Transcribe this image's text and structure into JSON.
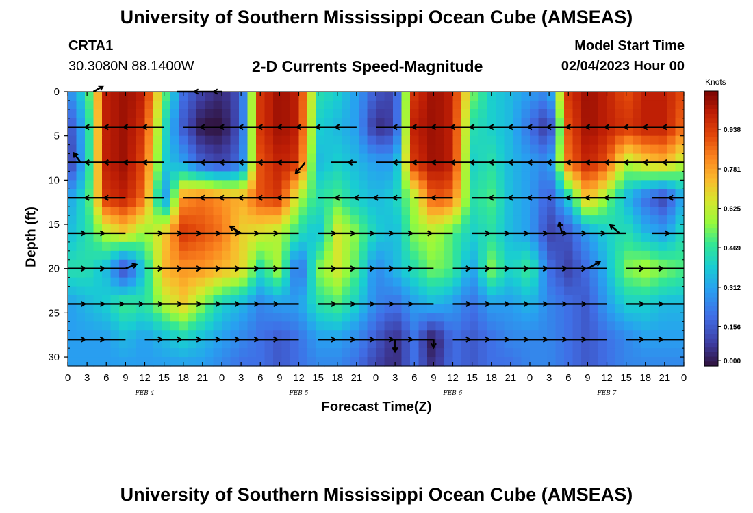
{
  "header": {
    "title": "University of Southern Mississippi Ocean Cube (AMSEAS)",
    "station_id": "CRTA1",
    "coordinates": "30.3080N  88.1400W",
    "chart_title": "2-D Currents Speed-Magnitude",
    "model_start_label": "Model Start Time",
    "model_start_value": "02/04/2023 Hour 00"
  },
  "footer": {
    "title": "University of Southern Mississippi Ocean Cube (AMSEAS)"
  },
  "chart_data": {
    "type": "heatmap",
    "xlabel": "Forecast Time(Z)",
    "ylabel": "Depth (ft)",
    "x_ticks": [
      "0",
      "3",
      "6",
      "9",
      "12",
      "15",
      "18",
      "21",
      "0",
      "3",
      "6",
      "9",
      "12",
      "15",
      "18",
      "21",
      "0",
      "3",
      "6",
      "9",
      "12",
      "15",
      "18",
      "21",
      "0",
      "3",
      "6",
      "9",
      "12",
      "15",
      "18",
      "21",
      "0"
    ],
    "x_range_hours": [
      0,
      96
    ],
    "day_labels": [
      {
        "label": "FEB 4",
        "hour": 12
      },
      {
        "label": "FEB 5",
        "hour": 36
      },
      {
        "label": "FEB 6",
        "hour": 60
      },
      {
        "label": "FEB 7",
        "hour": 84
      }
    ],
    "y_ticks": [
      0,
      5,
      10,
      15,
      20,
      25,
      30
    ],
    "y_range": [
      0,
      31
    ],
    "y_reversed": true,
    "colorbar": {
      "units": "Knots",
      "ticks": [
        "0.938",
        "0.781",
        "0.625",
        "0.469",
        "0.312",
        "0.156",
        "0.000"
      ],
      "range": [
        0,
        1.09
      ]
    },
    "speed_grid": {
      "hours": [
        0,
        3,
        6,
        9,
        12,
        15,
        18,
        21,
        24,
        27,
        30,
        33,
        36,
        39,
        42,
        45,
        48,
        51,
        54,
        57,
        60,
        63,
        66,
        69,
        72,
        75,
        78,
        81,
        84,
        87,
        90,
        93,
        96
      ],
      "depths": [
        0,
        4,
        8,
        12,
        16,
        20,
        24,
        28,
        31
      ],
      "values": [
        [
          0.25,
          0.45,
          1.0,
          1.05,
          1.0,
          0.55,
          0.2,
          0.1,
          0.05,
          0.15,
          0.95,
          1.05,
          1.0,
          0.45,
          0.4,
          0.3,
          0.15,
          0.1,
          0.95,
          1.05,
          1.0,
          0.55,
          0.4,
          0.35,
          0.3,
          0.25,
          0.95,
          1.05,
          1.0,
          0.9,
          1.0,
          1.0,
          0.9
        ],
        [
          0.1,
          0.4,
          1.0,
          1.05,
          0.95,
          0.45,
          0.15,
          0.0,
          0.0,
          0.15,
          0.95,
          1.05,
          1.0,
          0.4,
          0.35,
          0.3,
          0.05,
          0.1,
          1.0,
          1.05,
          1.0,
          0.45,
          0.4,
          0.35,
          0.2,
          0.05,
          0.9,
          1.05,
          1.0,
          0.95,
          1.0,
          1.0,
          0.85
        ],
        [
          0.05,
          0.4,
          1.0,
          1.05,
          0.9,
          0.4,
          0.3,
          0.15,
          0.1,
          0.2,
          0.9,
          1.0,
          0.95,
          0.35,
          0.4,
          0.35,
          0.3,
          0.3,
          0.95,
          1.05,
          1.0,
          0.4,
          0.45,
          0.35,
          0.3,
          0.25,
          0.85,
          1.0,
          0.9,
          0.6,
          0.7,
          0.75,
          0.6
        ],
        [
          0.3,
          0.45,
          0.95,
          1.0,
          0.85,
          0.25,
          0.8,
          0.85,
          0.8,
          0.75,
          0.9,
          0.95,
          0.6,
          0.45,
          0.5,
          0.4,
          0.35,
          0.4,
          0.6,
          0.9,
          0.85,
          0.45,
          0.5,
          0.35,
          0.3,
          0.15,
          0.4,
          0.75,
          0.55,
          0.35,
          0.2,
          0.1,
          0.35
        ],
        [
          0.35,
          0.45,
          0.6,
          0.7,
          0.55,
          0.7,
          0.95,
          0.9,
          0.85,
          0.7,
          0.65,
          0.6,
          0.45,
          0.35,
          0.65,
          0.55,
          0.4,
          0.35,
          0.55,
          0.6,
          0.5,
          0.4,
          0.45,
          0.35,
          0.3,
          0.1,
          0.15,
          0.3,
          0.4,
          0.45,
          0.35,
          0.3,
          0.45
        ],
        [
          0.45,
          0.45,
          0.35,
          0.1,
          0.4,
          0.75,
          0.8,
          0.8,
          0.75,
          0.7,
          0.45,
          0.6,
          0.15,
          0.55,
          0.65,
          0.5,
          0.25,
          0.35,
          0.45,
          0.55,
          0.5,
          0.3,
          0.55,
          0.4,
          0.5,
          0.2,
          0.1,
          0.2,
          0.35,
          0.55,
          0.6,
          0.55,
          0.5
        ],
        [
          0.3,
          0.35,
          0.4,
          0.5,
          0.45,
          0.6,
          0.7,
          0.55,
          0.4,
          0.35,
          0.25,
          0.3,
          0.3,
          0.45,
          0.5,
          0.4,
          0.25,
          0.2,
          0.3,
          0.35,
          0.3,
          0.2,
          0.3,
          0.3,
          0.35,
          0.25,
          0.2,
          0.15,
          0.3,
          0.4,
          0.4,
          0.35,
          0.35
        ],
        [
          0.3,
          0.3,
          0.3,
          0.35,
          0.3,
          0.35,
          0.4,
          0.35,
          0.3,
          0.25,
          0.2,
          0.15,
          0.2,
          0.3,
          0.3,
          0.25,
          0.15,
          0.05,
          0.2,
          0.0,
          0.2,
          0.15,
          0.2,
          0.25,
          0.25,
          0.25,
          0.2,
          0.15,
          0.2,
          0.25,
          0.3,
          0.3,
          0.3
        ],
        [
          0.3,
          0.3,
          0.3,
          0.3,
          0.3,
          0.3,
          0.3,
          0.3,
          0.25,
          0.2,
          0.2,
          0.15,
          0.2,
          0.25,
          0.25,
          0.2,
          0.1,
          0.05,
          0.2,
          0.05,
          0.2,
          0.15,
          0.2,
          0.2,
          0.25,
          0.25,
          0.2,
          0.15,
          0.2,
          0.25,
          0.25,
          0.25,
          0.25
        ]
      ]
    },
    "vector_rows": [
      {
        "depth": 0,
        "segments": [
          [
            17,
            24
          ]
        ],
        "arrows": [
          {
            "hour": 4,
            "dx": 14,
            "dy": -8
          }
        ]
      },
      {
        "depth": 4,
        "segments": [
          [
            0,
            15
          ],
          [
            18,
            45
          ],
          [
            48,
            96
          ]
        ],
        "arrows": []
      },
      {
        "depth": 8,
        "segments": [
          [
            0,
            15
          ],
          [
            18,
            36
          ],
          [
            41,
            45
          ],
          [
            48,
            96
          ]
        ],
        "arrows": [
          {
            "hour": 2,
            "dx": -10,
            "dy": -14
          },
          {
            "hour": 37,
            "dx": -14,
            "dy": 16
          }
        ]
      },
      {
        "depth": 12,
        "segments": [
          [
            0,
            9
          ],
          [
            12,
            15
          ],
          [
            18,
            36
          ],
          [
            39,
            52
          ],
          [
            54,
            60
          ],
          [
            63,
            87
          ],
          [
            91,
            96
          ]
        ],
        "arrows": []
      },
      {
        "depth": 16,
        "segments": [
          [
            0,
            9
          ],
          [
            12,
            36
          ],
          [
            39,
            60
          ],
          [
            63,
            87
          ],
          [
            91,
            96
          ]
        ],
        "arrows": [
          {
            "hour": 27,
            "dx": -16,
            "dy": -10
          },
          {
            "hour": 77,
            "dx": -4,
            "dy": -16
          },
          {
            "hour": 86,
            "dx": -14,
            "dy": -12
          }
        ]
      },
      {
        "depth": 20,
        "segments": [
          [
            0,
            9
          ],
          [
            12,
            36
          ],
          [
            39,
            57
          ],
          [
            60,
            84
          ],
          [
            87,
            96
          ]
        ],
        "arrows": [
          {
            "hour": 9,
            "dx": 16,
            "dy": -6
          },
          {
            "hour": 81,
            "dx": 18,
            "dy": -10
          }
        ]
      },
      {
        "depth": 24,
        "segments": [
          [
            0,
            36
          ],
          [
            39,
            57
          ],
          [
            60,
            84
          ],
          [
            87,
            96
          ]
        ],
        "arrows": []
      },
      {
        "depth": 28,
        "segments": [
          [
            0,
            9
          ],
          [
            12,
            36
          ],
          [
            39,
            57
          ],
          [
            60,
            84
          ],
          [
            87,
            96
          ]
        ],
        "arrows": [
          {
            "hour": 51,
            "dx": 0,
            "dy": 18
          },
          {
            "hour": 57,
            "dx": 0,
            "dy": 12
          }
        ]
      }
    ]
  }
}
